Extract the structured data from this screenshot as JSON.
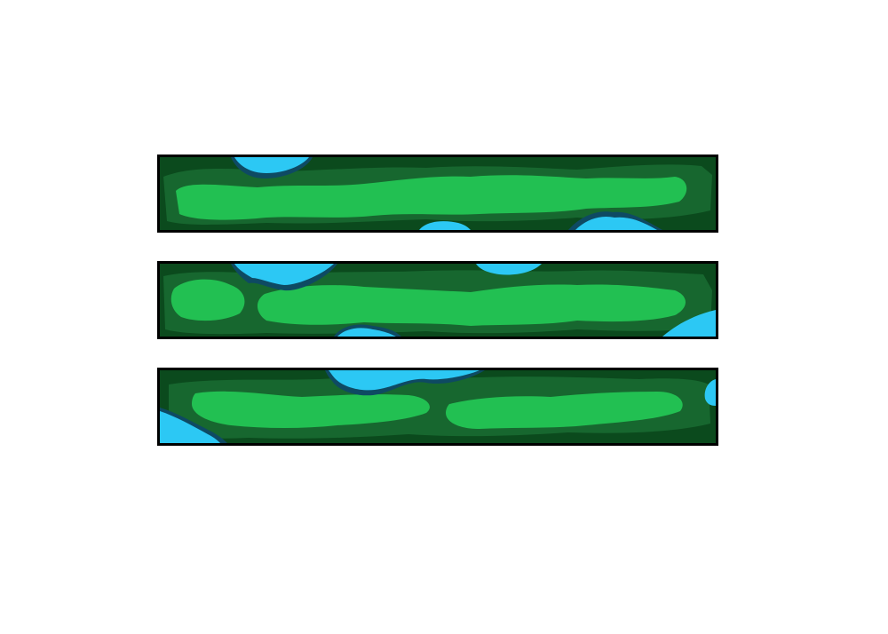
{
  "colors": {
    "background": "#ffffff",
    "border": "#000000",
    "dark_green": "#0b4a1d",
    "mid_green": "#17672f",
    "light_green": "#22c052",
    "water_light": "#2cc8f4",
    "water_dark": "#0e4a63"
  },
  "strips": [
    {
      "name": "terrain-strip-1",
      "features": [
        "grass-band",
        "water-pool-top",
        "water-pool-bottom-mid",
        "water-pool-bottom-right"
      ]
    },
    {
      "name": "terrain-strip-2",
      "features": [
        "grass-band",
        "water-pool-top-left",
        "water-pool-top-mid",
        "water-pool-bottom-left",
        "water-pool-right"
      ]
    },
    {
      "name": "terrain-strip-3",
      "features": [
        "grass-band",
        "water-pool-top-center",
        "water-pool-left",
        "water-pool-right-edge"
      ]
    }
  ]
}
